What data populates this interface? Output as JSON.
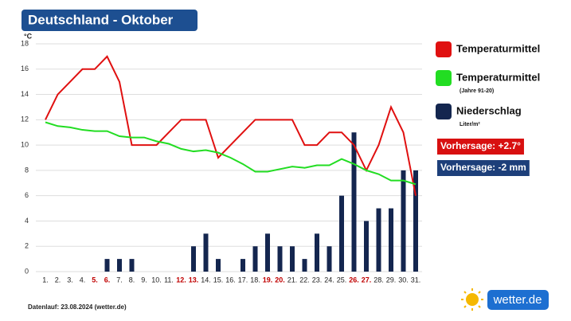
{
  "chart_data": {
    "type": "bar",
    "title": "Deutschland - Oktober",
    "y_unit": "°C",
    "footer": "Datenlauf: 23.08.2024 (wetter.de)",
    "logo": "wetter.de",
    "categories": [
      "1.",
      "2.",
      "3.",
      "4.",
      "5.",
      "6.",
      "7.",
      "8.",
      "9.",
      "10.",
      "11.",
      "12.",
      "13.",
      "14.",
      "15.",
      "16.",
      "17.",
      "18.",
      "19.",
      "20.",
      "21.",
      "22.",
      "23.",
      "24.",
      "25.",
      "26.",
      "27.",
      "28.",
      "29.",
      "30.",
      "31."
    ],
    "category_colors": [
      "#222",
      "#222",
      "#222",
      "#222",
      "#c00000",
      "#c00000",
      "#222",
      "#222",
      "#222",
      "#222",
      "#222",
      "#c00000",
      "#c00000",
      "#222",
      "#222",
      "#222",
      "#222",
      "#222",
      "#c00000",
      "#c00000",
      "#222",
      "#222",
      "#222",
      "#222",
      "#222",
      "#c00000",
      "#c00000",
      "#222",
      "#222",
      "#222",
      "#222"
    ],
    "ylim": [
      0,
      18
    ],
    "yticks": [
      0,
      2,
      4,
      6,
      8,
      10,
      12,
      14,
      16,
      18
    ],
    "series": [
      {
        "name": "Temperaturmittel",
        "type": "line",
        "color": "#e01010",
        "values": [
          12,
          14,
          15,
          16,
          16,
          17,
          15,
          10,
          10,
          10,
          11,
          12,
          12,
          12,
          9,
          10,
          11,
          12,
          12,
          12,
          12,
          10,
          10,
          11,
          11,
          10,
          8,
          10,
          13,
          11,
          6
        ]
      },
      {
        "name": "Temperaturmittel",
        "sublabel": "(Jahre 91-20)",
        "type": "line",
        "color": "#22dd22",
        "values": [
          11.8,
          11.5,
          11.4,
          11.2,
          11.1,
          11.1,
          10.7,
          10.6,
          10.6,
          10.3,
          10.1,
          9.7,
          9.5,
          9.6,
          9.4,
          9.0,
          8.5,
          7.9,
          7.9,
          8.1,
          8.3,
          8.2,
          8.4,
          8.4,
          8.9,
          8.5,
          8.0,
          7.7,
          7.2,
          7.2,
          6.9
        ]
      },
      {
        "name": "Niederschlag",
        "sublabel": "Liter/m²",
        "type": "bar",
        "color": "#14264f",
        "values": [
          0,
          0,
          0,
          0,
          0,
          1,
          1,
          1,
          0,
          0,
          0,
          0,
          2,
          3,
          1,
          0,
          1,
          2,
          3,
          2,
          2,
          1,
          3,
          2,
          6,
          11,
          4,
          5,
          5,
          8,
          8
        ]
      }
    ],
    "forecasts": [
      {
        "text": "Vorhersage: +2.7°",
        "color": "#d81010"
      },
      {
        "text": "Vorhersage: -2 mm",
        "color": "#1d3f7a"
      }
    ]
  }
}
